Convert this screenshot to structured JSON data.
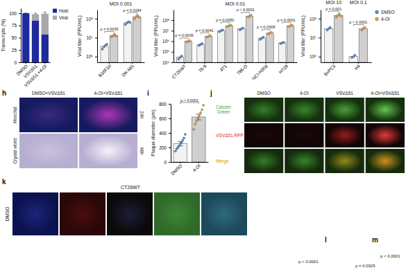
{
  "chart_data": [
    {
      "type": "bar",
      "stacked": true,
      "y_label": "Transcripts (%)",
      "categories": [
        "DMSO",
        "VSVΔ51",
        "VSVΔ51 +4-OI"
      ],
      "series": [
        {
          "name": "Host",
          "color": "#1f2a9c",
          "values": [
            100,
            85,
            57
          ],
          "errors": [
            0,
            2,
            3
          ]
        },
        {
          "name": "Viral",
          "color": "#a9a9a9",
          "values": [
            0,
            13,
            42
          ],
          "errors": [
            0,
            2,
            3
          ]
        }
      ],
      "ylim": [
        0,
        110
      ],
      "yticks": [
        0,
        25,
        50,
        75,
        100
      ],
      "legend": "right"
    },
    {
      "type": "bar",
      "log": "y",
      "title": "MOI 0.001",
      "y_label": "Viral titer (PFU/mL)",
      "categories": [
        "B16F10",
        "DK-MG"
      ],
      "series": [
        {
          "color": "#5b8fc9",
          "values": [
            3500000,
            61000000
          ],
          "points": [
            [
              2500000,
              3200000,
              4000000,
              4500000
            ],
            [
              50000000,
              60000000,
              70000000,
              65000000
            ]
          ]
        },
        {
          "color": "#e8a33a",
          "values": [
            13000000,
            125000000
          ],
          "points": [
            [
              11000000,
              13000000,
              15000000,
              12000000
            ],
            [
              100000000,
              130000000,
              150000000,
              120000000
            ]
          ]
        }
      ],
      "p_values": [
        "p = 0.0035",
        "p = 0.0184"
      ],
      "ylim": [
        500000,
        300000000
      ],
      "yticks": [
        {
          "value": 1000000,
          "label": "10⁶"
        },
        {
          "value": 10000000,
          "label": "10⁷"
        },
        {
          "value": 100000000,
          "label": "10⁸"
        }
      ]
    },
    {
      "type": "bar",
      "log": "y",
      "title": "MOI 0.01",
      "y_label": "Viral titer (PFU/mL)",
      "categories": [
        "CT26WT",
        "76-9",
        "4T1",
        "786-O",
        "NCI-H358",
        "HT29"
      ],
      "series": [
        {
          "color": "#5b8fc9",
          "values": [
            30000,
            500000,
            10000000,
            15000000,
            2000000,
            700000
          ],
          "points": [
            [
              20000,
              30000,
              40000
            ],
            [
              400000,
              500000,
              600000
            ],
            [
              8000000,
              10000000,
              12000000
            ],
            [
              12000000,
              15000000,
              18000000
            ],
            [
              1500000,
              2000000,
              2500000
            ],
            [
              600000,
              700000,
              800000
            ]
          ]
        },
        {
          "color": "#e8a33a",
          "values": [
            1000000,
            3000000,
            30000000,
            250000000,
            6000000,
            30000000
          ],
          "points": [
            [
              900000,
              1000000,
              1100000
            ],
            [
              2500000,
              3000000,
              3500000
            ],
            [
              25000000,
              30000000,
              35000000
            ],
            [
              200000000,
              250000000,
              300000000
            ],
            [
              5000000,
              6000000,
              7000000
            ],
            [
              25000000,
              30000000,
              35000000
            ]
          ]
        }
      ],
      "p_values": [
        "p = 0.0005",
        "p = 0.0041",
        "p = 0.0050",
        "p < 0.0001",
        "p = 0.0308",
        "p = 0.0001"
      ],
      "ylim": [
        10000,
        1000000000
      ],
      "yticks": [
        {
          "value": 10000,
          "label": "10⁴"
        },
        {
          "value": 100000,
          "label": "10⁵"
        },
        {
          "value": 1000000,
          "label": "10⁶"
        },
        {
          "value": 10000000,
          "label": "10⁷"
        },
        {
          "value": 100000000,
          "label": "10⁸"
        }
      ]
    },
    {
      "type": "bar",
      "log": "y",
      "y_label": "Viral titer (PFU/mL)",
      "categories": [
        "BxPC3",
        "H4"
      ],
      "category_titles": [
        "MOI 10",
        "MOI 0.1"
      ],
      "series": [
        {
          "name": "DMSO",
          "color": "#5b8fc9",
          "values": [
            30000000,
            1000000
          ],
          "points": [
            [
              25000000,
              30000000,
              35000000
            ],
            [
              900000,
              1000000,
              1200000
            ]
          ]
        },
        {
          "name": "4-OI",
          "color": "#e8a33a",
          "values": [
            150000000,
            30000000
          ],
          "points": [
            [
              120000000,
              150000000,
              180000000,
              140000000
            ],
            [
              25000000,
              30000000,
              35000000
            ]
          ]
        }
      ],
      "p_values": [
        "p = 0.001",
        "p < 0.0001"
      ],
      "ylim": [
        500000,
        300000000
      ],
      "yticks": [
        {
          "value": 1000000,
          "label": "10⁶"
        },
        {
          "value": 10000000,
          "label": "10⁷"
        },
        {
          "value": 100000000,
          "label": "10⁸"
        }
      ],
      "legend": "right"
    },
    {
      "type": "bar",
      "panel_label": "i",
      "y_label": "Plaque diameter (µm)",
      "categories": [
        "DMSO",
        "4-OI"
      ],
      "series": [
        {
          "colors": [
            "#5b8fc9",
            "#e8a33a"
          ],
          "values": [
            253,
            619
          ],
          "errors": [
            30,
            40
          ],
          "points": [
            [
              150,
              180,
              200,
              220,
              250,
              270,
              300,
              330,
              380
            ],
            [
              450,
              520,
              560,
              600,
              640,
              680,
              720,
              780
            ]
          ]
        }
      ],
      "annotation": "p < 0.0001",
      "ylim": [
        0,
        800
      ],
      "yticks": [
        0,
        200,
        400,
        600,
        800
      ]
    }
  ],
  "image_panels": {
    "h": {
      "label": "h",
      "column_titles": [
        "DMSO+VSVΔ51",
        "4-OI+VSVΔ51"
      ],
      "row_labels": [
        "Hoechst",
        "Crystal violet"
      ],
      "times": [
        "24h",
        "48h"
      ]
    },
    "j": {
      "label": "j",
      "column_titles": [
        "DMSO",
        "4-OI",
        "VSVΔ51",
        "4-OI+VSVΔ51"
      ],
      "row_labels": [
        "Calcein Green",
        "VSVΔ51-RFP",
        "Merge"
      ]
    },
    "k": {
      "label": "k",
      "title": "CT26WT",
      "row_labels": [
        "DMSO"
      ]
    },
    "l": {
      "label": "l",
      "annotations": [
        "p < 0.0001"
      ]
    },
    "m": {
      "label": "m",
      "annotations": [
        "p = 0.0325",
        "p < 0.0001"
      ]
    }
  }
}
